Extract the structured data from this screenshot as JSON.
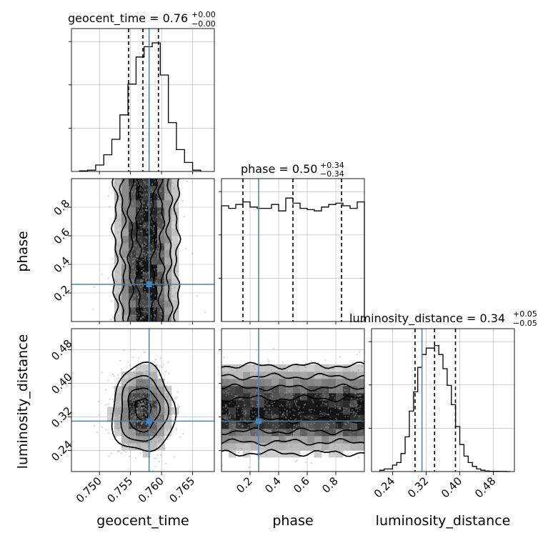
{
  "chart_data": {
    "type": "corner",
    "parameters": [
      "geocent_time",
      "phase",
      "luminosity_distance"
    ],
    "truth": {
      "geocent_time": 0.758,
      "phase": 0.26,
      "luminosity_distance": 0.31
    },
    "colors": {
      "truth": "#4682b4",
      "hist": "#000000",
      "grid": "#b0b0b0",
      "scatter": "#9a9a9a"
    },
    "marginals": [
      {
        "param": "geocent_time",
        "title_main": "geocent_time = 0.76",
        "sup": "+0.00",
        "sub": "−0.00",
        "range": [
          0.7455,
          0.7685
        ],
        "ymax": 1.0,
        "quantiles": [
          0.7547,
          0.757,
          0.7595
        ],
        "edges": [
          0.7468,
          0.7481,
          0.7494,
          0.7507,
          0.752,
          0.7533,
          0.7546,
          0.7559,
          0.7572,
          0.7585,
          0.7598,
          0.7611,
          0.7624,
          0.7637,
          0.765,
          0.7663
        ],
        "counts": [
          0.005,
          0.01,
          0.05,
          0.13,
          0.25,
          0.44,
          0.68,
          0.89,
          0.97,
          1.0,
          0.75,
          0.38,
          0.17,
          0.07,
          0.01
        ],
        "ticks": [
          0.75,
          0.755,
          0.76,
          0.765
        ],
        "tick_labels": [
          "0.750",
          "0.755",
          "0.760",
          "0.765"
        ]
      },
      {
        "param": "phase",
        "title_main": "phase = 0.50",
        "sup": "+0.34",
        "sub": "−0.34",
        "range": [
          0.0,
          1.0
        ],
        "ymax": 1.0,
        "quantiles": [
          0.15,
          0.5,
          0.84
        ],
        "edges": [
          0.0,
          0.05,
          0.1,
          0.15,
          0.2,
          0.25,
          0.3,
          0.35,
          0.4,
          0.45,
          0.5,
          0.55,
          0.6,
          0.65,
          0.7,
          0.75,
          0.8,
          0.85,
          0.9,
          0.95,
          1.0
        ],
        "counts": [
          0.9,
          0.88,
          0.91,
          0.93,
          0.89,
          0.88,
          0.88,
          0.91,
          0.86,
          0.96,
          0.92,
          0.88,
          0.87,
          0.86,
          0.89,
          0.91,
          0.92,
          0.9,
          0.88,
          0.93
        ],
        "ticks": [
          0.2,
          0.4,
          0.6,
          0.8
        ],
        "tick_labels": [
          "0.2",
          "0.4",
          "0.6",
          "0.8"
        ]
      },
      {
        "param": "luminosity_distance",
        "title_main": "luminosity_distance = 0.34",
        "sup": "+0.05",
        "sub": "−0.05",
        "range": [
          0.19,
          0.53
        ],
        "ymax": 1.0,
        "quantiles": [
          0.2935,
          0.34,
          0.3897
        ],
        "edges": [
          0.21,
          0.22,
          0.23,
          0.24,
          0.25,
          0.26,
          0.27,
          0.28,
          0.29,
          0.3,
          0.31,
          0.32,
          0.33,
          0.34,
          0.35,
          0.36,
          0.37,
          0.38,
          0.39,
          0.4,
          0.41,
          0.42,
          0.43,
          0.44,
          0.45,
          0.46,
          0.47,
          0.48,
          0.49,
          0.5,
          0.51,
          0.52
        ],
        "counts": [
          0.01,
          0.02,
          0.02,
          0.05,
          0.07,
          0.14,
          0.27,
          0.47,
          0.62,
          0.81,
          0.91,
          0.96,
          0.96,
          0.98,
          0.91,
          0.8,
          0.67,
          0.52,
          0.35,
          0.21,
          0.12,
          0.07,
          0.04,
          0.02,
          0.01,
          0.004,
          0.002,
          0.002,
          0.001,
          0.001,
          0.0
        ],
        "ticks": [
          0.24,
          0.32,
          0.4,
          0.48
        ],
        "tick_labels": [
          "0.24",
          "0.32",
          "0.40",
          "0.48"
        ]
      }
    ],
    "joints": [
      {
        "x": "geocent_time",
        "y": "phase",
        "x_range": [
          0.7455,
          0.7685
        ],
        "y_range": [
          0.0,
          1.0
        ],
        "center": [
          0.7575,
          0.5
        ],
        "spread": [
          0.0025,
          0.6
        ]
      },
      {
        "x": "geocent_time",
        "y": "luminosity_distance",
        "x_range": [
          0.7455,
          0.7685
        ],
        "y_range": [
          0.19,
          0.53
        ],
        "center": [
          0.757,
          0.338
        ],
        "spread": [
          0.0025,
          0.052
        ]
      },
      {
        "x": "phase",
        "y": "luminosity_distance",
        "x_range": [
          0.0,
          1.0
        ],
        "y_range": [
          0.19,
          0.53
        ],
        "center": [
          0.5,
          0.338
        ],
        "spread": [
          0.6,
          0.052
        ]
      }
    ],
    "y_axis_labels": [
      "phase",
      "luminosity_distance"
    ],
    "y_axis_ticks": {
      "phase": {
        "ticks": [
          0.2,
          0.4,
          0.6,
          0.8
        ],
        "labels": [
          "0.2",
          "0.4",
          "0.6",
          "0.8"
        ]
      },
      "luminosity_distance": {
        "ticks": [
          0.24,
          0.32,
          0.4,
          0.48
        ],
        "labels": [
          "0.24",
          "0.32",
          "0.40",
          "0.48"
        ]
      }
    },
    "x_axis_labels": [
      "geocent_time",
      "phase",
      "luminosity_distance"
    ]
  }
}
